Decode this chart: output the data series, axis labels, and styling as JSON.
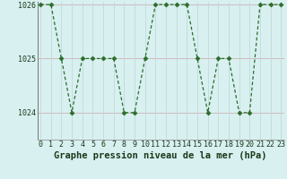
{
  "x": [
    0,
    1,
    2,
    3,
    4,
    5,
    6,
    7,
    8,
    9,
    10,
    11,
    12,
    13,
    14,
    15,
    16,
    17,
    18,
    19,
    20,
    21,
    22,
    23
  ],
  "y": [
    1026,
    1026,
    1025,
    1024,
    1025,
    1025,
    1025,
    1025,
    1024,
    1024,
    1025,
    1026,
    1026,
    1026,
    1026,
    1025,
    1024,
    1025,
    1025,
    1024,
    1024,
    1026,
    1026,
    1026
  ],
  "line_color": "#2a6e2a",
  "marker": "D",
  "marker_size": 2.5,
  "bg_color": "#d8f0f0",
  "h_grid_color": "#d0b0b8",
  "v_grid_color": "#c0d4d4",
  "title": "Graphe pression niveau de la mer (hPa)",
  "title_fontsize": 7.5,
  "title_color": "#1a3a1a",
  "xlabel_ticks": [
    "0",
    "1",
    "2",
    "3",
    "4",
    "5",
    "6",
    "7",
    "8",
    "9",
    "10",
    "11",
    "12",
    "13",
    "14",
    "15",
    "16",
    "17",
    "18",
    "19",
    "20",
    "21",
    "22",
    "23"
  ],
  "yticks": [
    1024,
    1025,
    1026
  ],
  "ylim": [
    1023.5,
    1026.05
  ],
  "xlim": [
    -0.3,
    23.3
  ],
  "tick_fontsize": 6,
  "spine_color": "#888888",
  "left_spine_color": "#777777"
}
